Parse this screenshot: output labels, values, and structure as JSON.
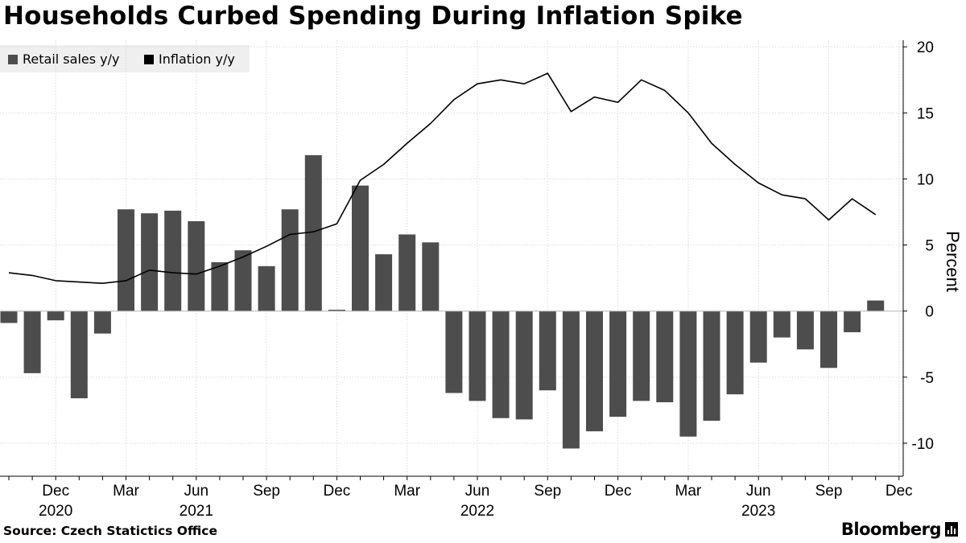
{
  "title": "Households Curbed Spending During Inflation Spike",
  "source": "Source: Czech Statictics Office",
  "brand": "Bloomberg",
  "chart_data": {
    "type": "bar",
    "y_axis_label": "Percent",
    "ylim": [
      -12.5,
      20.5
    ],
    "yticks": [
      20,
      15,
      10,
      5,
      0,
      -5,
      -10
    ],
    "ytick_labels": [
      "20",
      "15",
      "10",
      "5",
      "0",
      "-5",
      "-10"
    ],
    "grid": true,
    "legend_position": "top-left",
    "x": [
      "2020-10",
      "2020-11",
      "2020-12",
      "2021-01",
      "2021-02",
      "2021-03",
      "2021-04",
      "2021-05",
      "2021-06",
      "2021-07",
      "2021-08",
      "2021-09",
      "2021-10",
      "2021-11",
      "2021-12",
      "2022-01",
      "2022-02",
      "2022-03",
      "2022-04",
      "2022-05",
      "2022-06",
      "2022-07",
      "2022-08",
      "2022-09",
      "2022-10",
      "2022-11",
      "2022-12",
      "2023-01",
      "2023-02",
      "2023-03",
      "2023-04",
      "2023-05",
      "2023-06",
      "2023-07",
      "2023-08",
      "2023-09",
      "2023-10",
      "2023-11",
      "2023-12"
    ],
    "x_tick_labels": [
      {
        "month": "2020-12",
        "label": "Dec",
        "year": "2020"
      },
      {
        "month": "2021-03",
        "label": "Mar",
        "year": ""
      },
      {
        "month": "2021-06",
        "label": "Jun",
        "year": "2021"
      },
      {
        "month": "2021-09",
        "label": "Sep",
        "year": ""
      },
      {
        "month": "2021-12",
        "label": "Dec",
        "year": ""
      },
      {
        "month": "2022-03",
        "label": "Mar",
        "year": ""
      },
      {
        "month": "2022-06",
        "label": "Jun",
        "year": "2022"
      },
      {
        "month": "2022-09",
        "label": "Sep",
        "year": ""
      },
      {
        "month": "2022-12",
        "label": "Dec",
        "year": ""
      },
      {
        "month": "2023-03",
        "label": "Mar",
        "year": ""
      },
      {
        "month": "2023-06",
        "label": "Jun",
        "year": "2023"
      },
      {
        "month": "2023-09",
        "label": "Sep",
        "year": ""
      },
      {
        "month": "2023-12",
        "label": "Dec",
        "year": ""
      }
    ],
    "series": [
      {
        "name": "Retail sales y/y",
        "type": "bar",
        "color": "#4d4d4d",
        "values": [
          -0.9,
          -4.7,
          -0.7,
          -6.6,
          -1.7,
          7.7,
          7.4,
          7.6,
          6.8,
          3.7,
          4.6,
          3.4,
          7.7,
          11.8,
          0.1,
          9.5,
          4.3,
          5.8,
          5.2,
          -6.2,
          -6.8,
          -8.1,
          -8.2,
          -6.0,
          -10.4,
          -9.1,
          -8.0,
          -6.8,
          -6.9,
          -9.5,
          -8.3,
          -6.3,
          -3.9,
          -2.0,
          -2.9,
          -4.3,
          -1.6,
          0.8,
          null
        ]
      },
      {
        "name": "Inflation y/y",
        "type": "line",
        "color": "#000000",
        "values": [
          2.9,
          2.7,
          2.3,
          2.2,
          2.1,
          2.3,
          3.1,
          2.9,
          2.8,
          3.4,
          4.1,
          4.9,
          5.8,
          6.0,
          6.6,
          9.9,
          11.1,
          12.7,
          14.2,
          16.0,
          17.2,
          17.5,
          17.2,
          18.0,
          15.1,
          16.2,
          15.8,
          17.5,
          16.7,
          15.0,
          12.7,
          11.1,
          9.7,
          8.8,
          8.5,
          6.9,
          8.5,
          7.3,
          null
        ]
      }
    ]
  }
}
